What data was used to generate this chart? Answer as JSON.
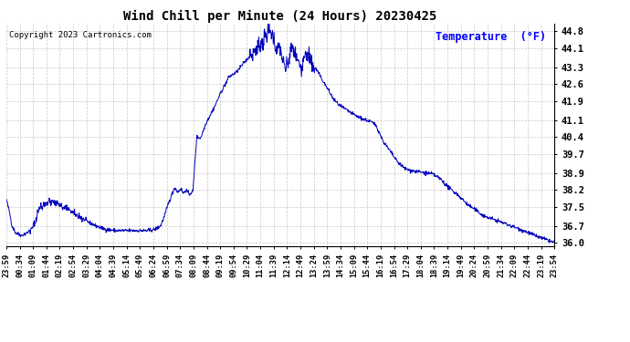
{
  "title": "Wind Chill per Minute (24 Hours) 20230425",
  "copyright_text": "Copyright 2023 Cartronics.com",
  "legend_label": "Temperature  (°F)",
  "line_color": "#0000bb",
  "background_color": "#ffffff",
  "grid_color": "#bbbbbb",
  "ylim": [
    35.85,
    45.1
  ],
  "yticks": [
    36.0,
    36.7,
    37.5,
    38.2,
    38.9,
    39.7,
    40.4,
    41.1,
    41.9,
    42.6,
    43.3,
    44.1,
    44.8
  ],
  "x_labels": [
    "23:59",
    "00:34",
    "01:09",
    "01:44",
    "02:19",
    "02:54",
    "03:29",
    "04:04",
    "04:39",
    "05:14",
    "05:49",
    "06:24",
    "06:59",
    "07:34",
    "08:09",
    "08:44",
    "09:19",
    "09:54",
    "10:29",
    "11:04",
    "11:39",
    "12:14",
    "12:49",
    "13:24",
    "13:59",
    "14:34",
    "15:09",
    "15:44",
    "16:19",
    "16:54",
    "17:29",
    "18:04",
    "18:39",
    "19:14",
    "19:49",
    "20:24",
    "20:59",
    "21:34",
    "22:09",
    "22:44",
    "23:19",
    "23:54"
  ],
  "keypoints": [
    [
      0,
      37.8
    ],
    [
      8,
      37.3
    ],
    [
      15,
      36.7
    ],
    [
      25,
      36.4
    ],
    [
      40,
      36.3
    ],
    [
      60,
      36.45
    ],
    [
      75,
      36.8
    ],
    [
      85,
      37.4
    ],
    [
      100,
      37.65
    ],
    [
      115,
      37.7
    ],
    [
      130,
      37.65
    ],
    [
      150,
      37.5
    ],
    [
      170,
      37.3
    ],
    [
      190,
      37.1
    ],
    [
      210,
      36.9
    ],
    [
      235,
      36.7
    ],
    [
      260,
      36.55
    ],
    [
      290,
      36.5
    ],
    [
      320,
      36.5
    ],
    [
      350,
      36.5
    ],
    [
      370,
      36.5
    ],
    [
      390,
      36.55
    ],
    [
      405,
      36.7
    ],
    [
      415,
      37.1
    ],
    [
      425,
      37.6
    ],
    [
      435,
      38.0
    ],
    [
      442,
      38.3
    ],
    [
      450,
      38.1
    ],
    [
      458,
      38.25
    ],
    [
      465,
      38.05
    ],
    [
      472,
      38.2
    ],
    [
      480,
      38.0
    ],
    [
      490,
      38.15
    ],
    [
      500,
      40.4
    ],
    [
      510,
      40.35
    ],
    [
      525,
      41.0
    ],
    [
      545,
      41.6
    ],
    [
      565,
      42.3
    ],
    [
      585,
      42.9
    ],
    [
      605,
      43.1
    ],
    [
      625,
      43.5
    ],
    [
      645,
      43.85
    ],
    [
      660,
      44.15
    ],
    [
      675,
      44.45
    ],
    [
      688,
      44.8
    ],
    [
      695,
      44.75
    ],
    [
      703,
      44.5
    ],
    [
      710,
      43.9
    ],
    [
      718,
      44.2
    ],
    [
      725,
      43.6
    ],
    [
      733,
      43.2
    ],
    [
      740,
      43.5
    ],
    [
      750,
      44.15
    ],
    [
      758,
      43.85
    ],
    [
      765,
      43.5
    ],
    [
      775,
      43.3
    ],
    [
      785,
      44.0
    ],
    [
      795,
      43.8
    ],
    [
      805,
      43.3
    ],
    [
      815,
      43.2
    ],
    [
      825,
      42.9
    ],
    [
      840,
      42.5
    ],
    [
      858,
      42.0
    ],
    [
      875,
      41.7
    ],
    [
      895,
      41.5
    ],
    [
      915,
      41.3
    ],
    [
      935,
      41.15
    ],
    [
      955,
      41.05
    ],
    [
      970,
      40.9
    ],
    [
      990,
      40.2
    ],
    [
      1008,
      39.8
    ],
    [
      1025,
      39.4
    ],
    [
      1045,
      39.1
    ],
    [
      1060,
      39.0
    ],
    [
      1080,
      38.95
    ],
    [
      1100,
      38.9
    ],
    [
      1120,
      38.85
    ],
    [
      1140,
      38.65
    ],
    [
      1160,
      38.3
    ],
    [
      1185,
      38.0
    ],
    [
      1210,
      37.6
    ],
    [
      1255,
      37.1
    ],
    [
      1300,
      36.85
    ],
    [
      1350,
      36.55
    ],
    [
      1395,
      36.25
    ],
    [
      1439,
      36.0
    ]
  ]
}
